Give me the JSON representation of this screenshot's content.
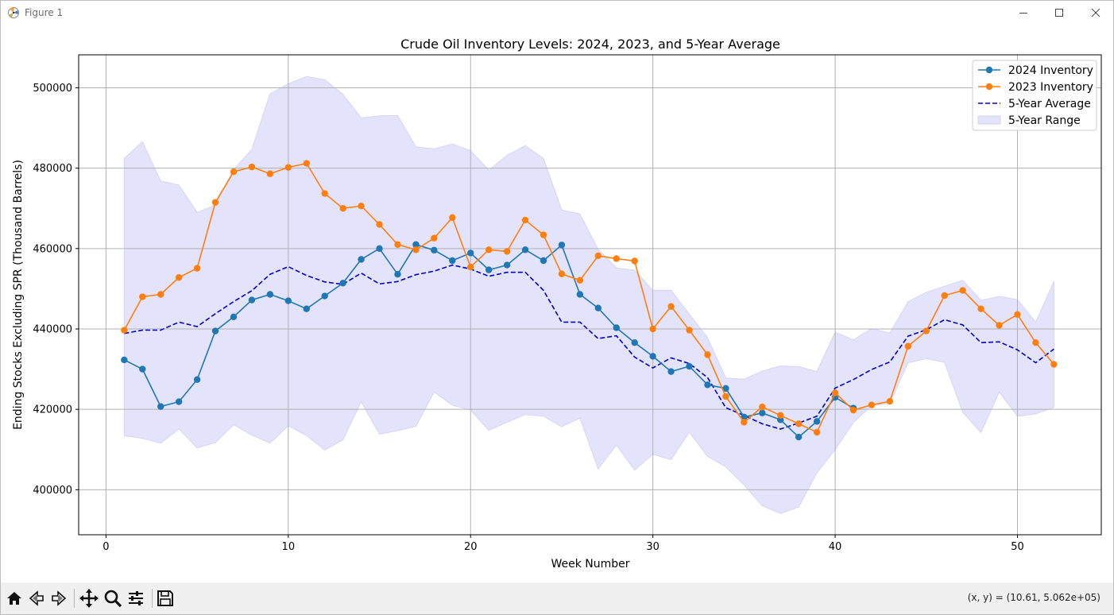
{
  "window": {
    "title": "Figure 1",
    "controls": {
      "minimize": "minimize-icon",
      "maximize": "maximize-icon",
      "close": "close-icon"
    }
  },
  "toolbar": {
    "buttons": [
      "home-icon",
      "back-arrow-icon",
      "forward-arrow-icon",
      "pan-icon",
      "zoom-icon",
      "configure-subplots-icon",
      "save-icon"
    ],
    "coordinates": "(x, y) = (10.61, 5.062e+05)"
  },
  "colors": {
    "series_2024": "#1f77b4",
    "series_2023": "#ff7f0e",
    "avg": "#0000cc",
    "range_fill": "#e3e3fb",
    "range_stroke": "#d5d5f5"
  },
  "chart_data": {
    "type": "line",
    "title": "Crude Oil Inventory Levels: 2024, 2023, and 5-Year Average",
    "xlabel": "Week Number",
    "ylabel": "Ending Stocks Excluding SPR (Thousand Barrels)",
    "xlim": [
      -1.5,
      54.6
    ],
    "ylim": [
      388800,
      508200
    ],
    "xticks": [
      0,
      10,
      20,
      30,
      40,
      50
    ],
    "yticks": [
      400000,
      420000,
      440000,
      460000,
      480000,
      500000
    ],
    "grid": true,
    "legend_position": "top-right",
    "series": [
      {
        "name": "2024 Inventory",
        "style": "line-marker",
        "x": [
          1,
          2,
          3,
          4,
          5,
          6,
          7,
          8,
          9,
          10,
          11,
          12,
          13,
          14,
          15,
          16,
          17,
          18,
          19,
          20,
          21,
          22,
          23,
          24,
          25,
          26,
          27,
          28,
          29,
          30,
          31,
          32,
          33,
          34,
          35,
          36,
          37,
          38,
          39,
          40,
          41
        ],
        "values": [
          432300,
          430000,
          420700,
          421900,
          427400,
          439500,
          443000,
          447200,
          448600,
          447000,
          445000,
          448200,
          451400,
          457300,
          460000,
          453600,
          461000,
          459600,
          457000,
          458900,
          454700,
          455900,
          459700,
          457000,
          460900,
          448600,
          445200,
          440300,
          436600,
          433200,
          429400,
          430700,
          426100,
          425200,
          418100,
          419100,
          417400,
          413100,
          417000,
          423000,
          420300
        ]
      },
      {
        "name": "2023 Inventory",
        "style": "line-marker",
        "x": [
          1,
          2,
          3,
          4,
          5,
          6,
          7,
          8,
          9,
          10,
          11,
          12,
          13,
          14,
          15,
          16,
          17,
          18,
          19,
          20,
          21,
          22,
          23,
          24,
          25,
          26,
          27,
          28,
          29,
          30,
          31,
          32,
          33,
          34,
          35,
          36,
          37,
          38,
          39,
          40,
          41,
          42,
          43,
          44,
          45,
          46,
          47,
          48,
          49,
          50,
          51,
          52
        ],
        "values": [
          439700,
          448000,
          448600,
          452800,
          455100,
          471500,
          479100,
          480300,
          478600,
          480200,
          481200,
          473700,
          470000,
          470600,
          466000,
          461000,
          459700,
          462600,
          467700,
          455400,
          459700,
          459300,
          467100,
          463400,
          453700,
          452100,
          458200,
          457500,
          456900,
          440000,
          445600,
          439700,
          433600,
          423200,
          416800,
          420600,
          418500,
          416400,
          414300,
          424100,
          419800,
          421100,
          422000,
          435700,
          439500,
          448300,
          449600,
          445000,
          440900,
          443600,
          436600,
          431200
        ]
      },
      {
        "name": "5-Year Average",
        "style": "dashed",
        "x": [
          1,
          2,
          3,
          4,
          5,
          6,
          7,
          8,
          9,
          10,
          11,
          12,
          13,
          14,
          15,
          16,
          17,
          18,
          19,
          20,
          21,
          22,
          23,
          24,
          25,
          26,
          27,
          28,
          29,
          30,
          31,
          32,
          33,
          34,
          35,
          36,
          37,
          38,
          39,
          40,
          41,
          42,
          43,
          44,
          45,
          46,
          47,
          48,
          49,
          50,
          51,
          52
        ],
        "values": [
          438900,
          439700,
          439700,
          441700,
          440600,
          443800,
          446800,
          449500,
          453600,
          455500,
          453300,
          451700,
          451100,
          453900,
          451200,
          451800,
          453500,
          454400,
          455900,
          454900,
          453100,
          454100,
          454100,
          449600,
          441700,
          441700,
          437600,
          438300,
          433000,
          430300,
          432800,
          431400,
          427900,
          420400,
          418500,
          416400,
          415100,
          416600,
          418300,
          425300,
          427400,
          429900,
          431800,
          438200,
          439800,
          442300,
          441000,
          436600,
          436800,
          434800,
          431600,
          435000
        ]
      },
      {
        "name": "5-Year Range",
        "style": "band",
        "x": [
          1,
          2,
          3,
          4,
          5,
          6,
          7,
          8,
          9,
          10,
          11,
          12,
          13,
          14,
          15,
          16,
          17,
          18,
          19,
          20,
          21,
          22,
          23,
          24,
          25,
          26,
          27,
          28,
          29,
          30,
          31,
          32,
          33,
          34,
          35,
          36,
          37,
          38,
          39,
          40,
          41,
          42,
          43,
          44,
          45,
          46,
          47,
          48,
          49,
          50,
          51,
          52
        ],
        "upper": [
          482400,
          486600,
          476800,
          475800,
          469000,
          470800,
          479600,
          484700,
          498500,
          501000,
          502800,
          502000,
          498400,
          492500,
          493000,
          493100,
          485300,
          484800,
          486000,
          484400,
          479500,
          483200,
          485600,
          482400,
          469600,
          468600,
          459800,
          455200,
          454600,
          449600,
          449600,
          443700,
          437800,
          427800,
          427500,
          429500,
          430800,
          430600,
          429400,
          439200,
          437300,
          440100,
          439000,
          446800,
          449100,
          450600,
          452100,
          447100,
          448100,
          447300,
          441700,
          451800
        ],
        "lower": [
          413400,
          412800,
          411600,
          415100,
          410400,
          411700,
          416200,
          413600,
          411600,
          415900,
          413500,
          409900,
          412400,
          421900,
          413800,
          414700,
          415800,
          424300,
          421000,
          419800,
          414800,
          416800,
          418700,
          418300,
          415700,
          417800,
          405200,
          411100,
          404900,
          408800,
          407500,
          414300,
          408300,
          405700,
          401200,
          396000,
          394100,
          395700,
          404200,
          410000,
          416700,
          420900,
          421500,
          431600,
          432600,
          431700,
          419300,
          414200,
          424300,
          418300,
          418900,
          420500
        ]
      }
    ]
  }
}
